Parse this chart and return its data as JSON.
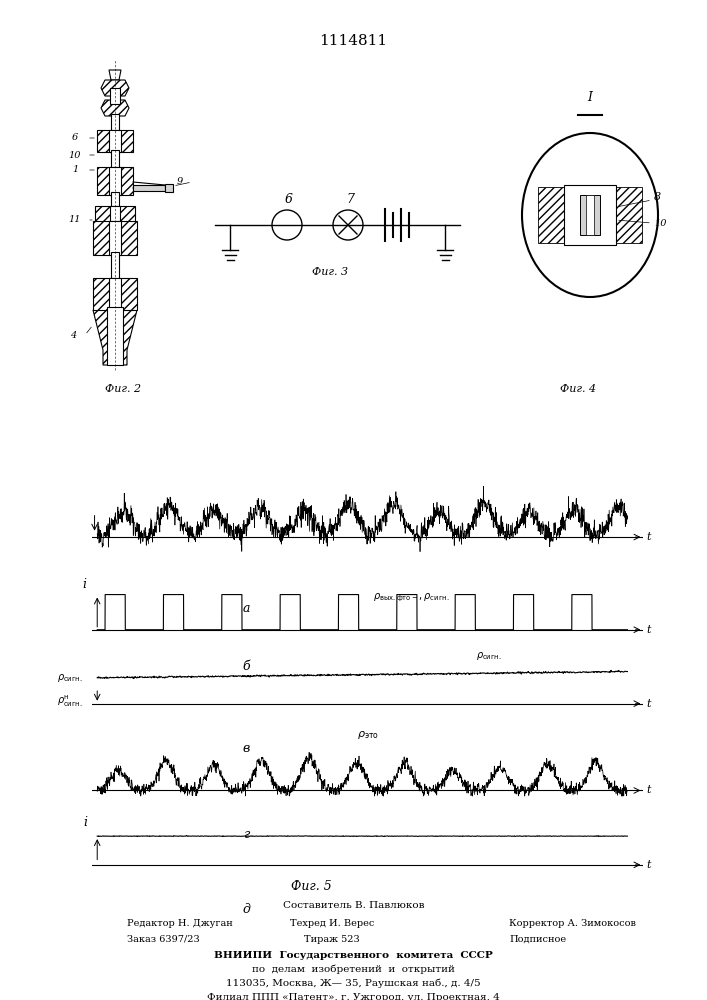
{
  "title": "1114811",
  "fig2_label": "Фиг. 2",
  "fig3_label": "Фиг. 3",
  "fig4_label": "Фиг. 4",
  "fig5_label": "Фиг. 5",
  "graph_a_label": "а",
  "graph_b_label": "б",
  "graph_v_label": "в",
  "graph_g_label": "г",
  "graph_d_label": "д",
  "label_t": "t",
  "label_i": "i",
  "label_6": "6",
  "label_7": "7",
  "label_8": "8",
  "label_10": "10",
  "label_I": "I",
  "footer1": "Составитель В. Павлюков",
  "footer2_left": "Редактор Н. Джуган",
  "footer2_mid": "Техред И. Верес",
  "footer2_right": "Корректор А. Зимокосов",
  "footer3_left": "Заказ 6397/23",
  "footer3_mid": "Тираж 523",
  "footer3_right": "Подписное",
  "footer4": "ВНИИПИ  Государственного  комитета  СССР",
  "footer5": "по  делам  изобретений  и  открытий",
  "footer6": "113035, Москва, Ж— 35, Раушская наб., д. 4/5",
  "footer7": "Филиал ППП «Патент», г. Ужгород, ул. Проектная, 4",
  "bg_color": "#ffffff"
}
